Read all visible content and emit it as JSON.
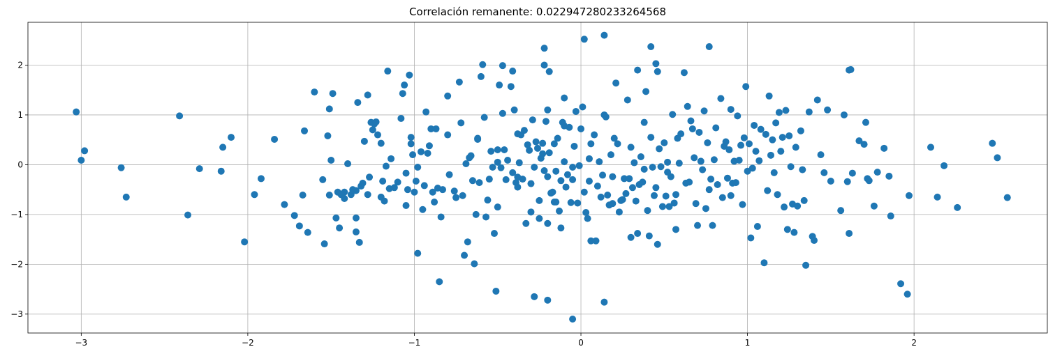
{
  "chart_data": {
    "type": "scatter",
    "title": "Correlación remanente: 0.022947280233264568",
    "xlabel": "",
    "ylabel": "",
    "xlim": [
      -3.32,
      2.8
    ],
    "ylim": [
      -3.38,
      2.86
    ],
    "grid": true,
    "marker_color": "#1f77b4",
    "xticks": [
      {
        "value": -3,
        "label": "−3"
      },
      {
        "value": -2,
        "label": "−2"
      },
      {
        "value": -1,
        "label": "−1"
      },
      {
        "value": 0,
        "label": "0"
      },
      {
        "value": 1,
        "label": "1"
      },
      {
        "value": 2,
        "label": "2"
      }
    ],
    "yticks": [
      {
        "value": -3,
        "label": "−3"
      },
      {
        "value": -2,
        "label": "−2"
      },
      {
        "value": -1,
        "label": "−1"
      },
      {
        "value": 0,
        "label": "0"
      },
      {
        "value": 1,
        "label": "1"
      },
      {
        "value": 2,
        "label": "2"
      }
    ],
    "points": [
      [
        -3.03,
        1.06
      ],
      [
        -3.0,
        0.09
      ],
      [
        -2.98,
        0.28
      ],
      [
        -2.76,
        -0.06
      ],
      [
        -2.73,
        -0.65
      ],
      [
        -2.41,
        0.98
      ],
      [
        -2.36,
        -1.01
      ],
      [
        -2.29,
        -0.08
      ],
      [
        -2.16,
        -0.13
      ],
      [
        -2.15,
        0.35
      ],
      [
        -2.1,
        0.55
      ],
      [
        -2.02,
        -1.55
      ],
      [
        -1.96,
        -0.6
      ],
      [
        -1.92,
        -0.28
      ],
      [
        -1.84,
        0.51
      ],
      [
        -1.78,
        -0.8
      ],
      [
        -1.72,
        -1.02
      ],
      [
        -1.69,
        -1.23
      ],
      [
        -1.67,
        -0.61
      ],
      [
        -1.66,
        0.68
      ],
      [
        -1.64,
        -1.36
      ],
      [
        -1.6,
        1.46
      ],
      [
        -1.55,
        -0.3
      ],
      [
        -1.54,
        -1.59
      ],
      [
        -1.52,
        0.58
      ],
      [
        -1.51,
        1.12
      ],
      [
        -1.51,
        -0.61
      ],
      [
        -1.5,
        0.09
      ],
      [
        -1.49,
        1.43
      ],
      [
        -1.47,
        -1.07
      ],
      [
        -1.46,
        -0.55
      ],
      [
        -1.45,
        -1.27
      ],
      [
        -1.44,
        -0.6
      ],
      [
        -1.42,
        -0.55
      ],
      [
        -1.42,
        -0.68
      ],
      [
        -1.4,
        0.02
      ],
      [
        -1.38,
        -0.6
      ],
      [
        -1.37,
        -0.5
      ],
      [
        -1.35,
        -1.07
      ],
      [
        -1.35,
        -1.35
      ],
      [
        -1.34,
        1.25
      ],
      [
        -1.33,
        -1.56
      ],
      [
        -1.32,
        -0.43
      ],
      [
        -1.31,
        -0.37
      ],
      [
        -1.3,
        0.47
      ],
      [
        -1.28,
        1.4
      ],
      [
        -1.28,
        -0.6
      ],
      [
        -1.27,
        -0.25
      ],
      [
        -1.26,
        0.85
      ],
      [
        -1.25,
        0.7
      ],
      [
        -1.24,
        0.82
      ],
      [
        -1.23,
        0.86
      ],
      [
        -1.22,
        0.6
      ],
      [
        -1.2,
        0.43
      ],
      [
        -1.2,
        -0.65
      ],
      [
        -1.19,
        -0.33
      ],
      [
        -1.18,
        -0.73
      ],
      [
        -1.17,
        -0.03
      ],
      [
        -1.16,
        1.88
      ],
      [
        -1.15,
        -0.48
      ],
      [
        -1.14,
        0.12
      ],
      [
        -1.12,
        -0.46
      ],
      [
        -1.1,
        -0.35
      ],
      [
        -1.08,
        0.93
      ],
      [
        -1.07,
        1.43
      ],
      [
        -1.06,
        1.6
      ],
      [
        -1.05,
        -0.17
      ],
      [
        -1.05,
        -0.82
      ],
      [
        -1.04,
        -0.5
      ],
      [
        -1.03,
        1.8
      ],
      [
        -1.02,
        0.55
      ],
      [
        -1.02,
        0.42
      ],
      [
        -1.01,
        0.2
      ],
      [
        -1.0,
        -0.55
      ],
      [
        -0.99,
        -0.33
      ],
      [
        -0.98,
        -0.05
      ],
      [
        -0.98,
        -1.78
      ],
      [
        -0.96,
        0.26
      ],
      [
        -0.95,
        -0.9
      ],
      [
        -0.94,
        -0.42
      ],
      [
        -0.93,
        1.06
      ],
      [
        -0.92,
        0.23
      ],
      [
        -0.91,
        0.38
      ],
      [
        -0.9,
        0.72
      ],
      [
        -0.89,
        -0.55
      ],
      [
        -0.88,
        -0.75
      ],
      [
        -0.87,
        0.72
      ],
      [
        -0.86,
        -0.47
      ],
      [
        -0.85,
        -2.35
      ],
      [
        -0.84,
        -1.05
      ],
      [
        -0.83,
        -0.5
      ],
      [
        -0.8,
        0.6
      ],
      [
        -0.79,
        -0.2
      ],
      [
        -0.76,
        -0.53
      ],
      [
        -0.75,
        -0.66
      ],
      [
        -0.73,
        1.66
      ],
      [
        -0.72,
        0.84
      ],
      [
        -0.71,
        -0.62
      ],
      [
        -0.7,
        -1.82
      ],
      [
        -0.69,
        0.02
      ],
      [
        -0.68,
        -1.55
      ],
      [
        -0.67,
        0.14
      ],
      [
        -0.66,
        0.18
      ],
      [
        -0.65,
        -0.32
      ],
      [
        -0.64,
        -1.99
      ],
      [
        -0.63,
        -1.0
      ],
      [
        -0.62,
        0.51
      ],
      [
        -0.62,
        0.53
      ],
      [
        -0.61,
        -0.36
      ],
      [
        -0.6,
        1.77
      ],
      [
        -0.59,
        2.01
      ],
      [
        -0.58,
        0.95
      ],
      [
        -0.57,
        -1.05
      ],
      [
        -0.56,
        -0.71
      ],
      [
        -0.55,
        -0.29
      ],
      [
        -0.54,
        0.27
      ],
      [
        -0.53,
        -0.05
      ],
      [
        -0.52,
        -1.38
      ],
      [
        -0.51,
        -2.54
      ],
      [
        -0.5,
        0.3
      ],
      [
        -0.5,
        0.05
      ],
      [
        -0.49,
        1.6
      ],
      [
        -0.48,
        -0.06
      ],
      [
        -0.47,
        1.03
      ],
      [
        -0.46,
        0.3
      ],
      [
        -0.45,
        -0.3
      ],
      [
        -0.44,
        0.09
      ],
      [
        -0.42,
        1.57
      ],
      [
        -0.41,
        -0.16
      ],
      [
        -0.4,
        1.1
      ],
      [
        -0.39,
        -0.36
      ],
      [
        -0.38,
        0.62
      ],
      [
        -0.38,
        -0.45
      ],
      [
        -0.37,
        0.04
      ],
      [
        -0.36,
        0.6
      ],
      [
        -0.35,
        -0.29
      ],
      [
        -0.34,
        0.69
      ],
      [
        -0.33,
        -1.18
      ],
      [
        -0.32,
        0.4
      ],
      [
        -0.31,
        0.29
      ],
      [
        -0.3,
        -0.38
      ],
      [
        -0.3,
        -0.95
      ],
      [
        -0.29,
        0.9
      ],
      [
        -0.28,
        -0.05
      ],
      [
        -0.27,
        0.46
      ],
      [
        -0.26,
        0.33
      ],
      [
        -0.25,
        -0.72
      ],
      [
        -0.25,
        -1.08
      ],
      [
        -0.24,
        0.13
      ],
      [
        -0.23,
        0.43
      ],
      [
        -0.23,
        0.22
      ],
      [
        -0.22,
        2.0
      ],
      [
        -0.22,
        -0.12
      ],
      [
        -0.21,
        0.87
      ],
      [
        -0.2,
        -0.24
      ],
      [
        -0.2,
        -1.18
      ],
      [
        -0.19,
        1.87
      ],
      [
        -0.19,
        0.24
      ],
      [
        -0.18,
        -0.57
      ],
      [
        -0.17,
        -0.55
      ],
      [
        -0.16,
        -0.75
      ],
      [
        -0.16,
        0.42
      ],
      [
        -0.15,
        -0.13
      ],
      [
        -0.15,
        -0.75
      ],
      [
        -0.14,
        0.53
      ],
      [
        -0.13,
        -0.93
      ],
      [
        -0.12,
        -1.27
      ],
      [
        -0.12,
        -0.32
      ],
      [
        -0.11,
        0.85
      ],
      [
        -0.1,
        0.06
      ],
      [
        -0.1,
        1.34
      ],
      [
        -0.09,
        -0.45
      ],
      [
        -0.08,
        -0.2
      ],
      [
        -0.07,
        0.75
      ],
      [
        -0.06,
        -0.76
      ],
      [
        -0.05,
        -0.3
      ],
      [
        -0.05,
        -0.05
      ],
      [
        -0.04,
        0.37
      ],
      [
        -0.03,
        1.07
      ],
      [
        -0.02,
        -0.77
      ],
      [
        -0.01,
        -0.02
      ],
      [
        0.0,
        0.72
      ],
      [
        0.01,
        1.16
      ],
      [
        0.02,
        -0.55
      ],
      [
        0.03,
        -0.96
      ],
      [
        0.04,
        -1.08
      ],
      [
        0.05,
        -0.33
      ],
      [
        0.06,
        0.42
      ],
      [
        0.06,
        -1.53
      ],
      [
        0.08,
        0.6
      ],
      [
        0.09,
        -1.53
      ],
      [
        0.1,
        -0.43
      ],
      [
        0.11,
        0.06
      ],
      [
        0.12,
        -0.65
      ],
      [
        0.13,
        -0.21
      ],
      [
        0.14,
        1.0
      ],
      [
        0.15,
        0.96
      ],
      [
        0.16,
        -0.61
      ],
      [
        0.17,
        -0.81
      ],
      [
        0.18,
        0.2
      ],
      [
        0.19,
        -0.78
      ],
      [
        0.19,
        -0.24
      ],
      [
        0.21,
        1.64
      ],
      [
        0.22,
        0.42
      ],
      [
        0.23,
        -0.95
      ],
      [
        0.24,
        -0.72
      ],
      [
        0.25,
        -0.7
      ],
      [
        0.26,
        -0.28
      ],
      [
        0.27,
        -0.58
      ],
      [
        0.28,
        1.3
      ],
      [
        0.29,
        -0.28
      ],
      [
        0.3,
        -1.46
      ],
      [
        0.31,
        -0.46
      ],
      [
        0.32,
        0.04
      ],
      [
        0.33,
        -0.73
      ],
      [
        0.34,
        -1.38
      ],
      [
        0.35,
        -0.4
      ],
      [
        0.36,
        0.16
      ],
      [
        0.37,
        -0.35
      ],
      [
        0.38,
        -0.09
      ],
      [
        0.39,
        1.47
      ],
      [
        0.4,
        -0.92
      ],
      [
        0.41,
        -1.43
      ],
      [
        0.42,
        0.55
      ],
      [
        0.43,
        -0.05
      ],
      [
        0.44,
        -0.62
      ],
      [
        0.45,
        -0.46
      ],
      [
        0.46,
        -1.6
      ],
      [
        0.47,
        0.32
      ],
      [
        0.48,
        -0.04
      ],
      [
        0.49,
        -0.84
      ],
      [
        0.5,
        0.44
      ],
      [
        0.51,
        -0.63
      ],
      [
        0.52,
        0.05
      ],
      [
        0.53,
        -0.84
      ],
      [
        0.54,
        -0.24
      ],
      [
        0.55,
        1.01
      ],
      [
        0.56,
        -0.77
      ],
      [
        0.57,
        -1.3
      ],
      [
        0.58,
        0.53
      ],
      [
        0.59,
        0.03
      ],
      [
        0.6,
        0.62
      ],
      [
        0.62,
        1.85
      ],
      [
        0.63,
        -0.37
      ],
      [
        0.64,
        1.17
      ],
      [
        0.65,
        -0.35
      ],
      [
        0.66,
        0.88
      ],
      [
        0.67,
        0.72
      ],
      [
        0.68,
        0.14
      ],
      [
        0.69,
        -0.78
      ],
      [
        0.7,
        -1.22
      ],
      [
        0.71,
        0.65
      ],
      [
        0.72,
        0.07
      ],
      [
        0.73,
        -0.1
      ],
      [
        0.74,
        1.08
      ],
      [
        0.75,
        -0.88
      ],
      [
        0.76,
        0.44
      ],
      [
        0.77,
        -0.5
      ],
      [
        0.78,
        -0.29
      ],
      [
        0.79,
        -1.22
      ],
      [
        0.8,
        0.1
      ],
      [
        0.81,
        0.74
      ],
      [
        0.82,
        -0.4
      ],
      [
        0.84,
        1.33
      ],
      [
        0.85,
        -0.66
      ],
      [
        0.86,
        0.37
      ],
      [
        0.87,
        0.46
      ],
      [
        0.88,
        -0.27
      ],
      [
        0.89,
        0.3
      ],
      [
        0.9,
        1.11
      ],
      [
        0.91,
        -0.37
      ],
      [
        0.92,
        0.07
      ],
      [
        0.93,
        -0.36
      ],
      [
        0.94,
        0.98
      ],
      [
        0.95,
        0.09
      ],
      [
        0.96,
        0.39
      ],
      [
        0.97,
        -0.8
      ],
      [
        0.98,
        0.54
      ],
      [
        0.99,
        1.57
      ],
      [
        1.0,
        -0.13
      ],
      [
        1.01,
        0.42
      ],
      [
        1.02,
        -1.47
      ],
      [
        1.03,
        -0.07
      ],
      [
        1.04,
        0.79
      ],
      [
        1.05,
        0.27
      ],
      [
        1.06,
        -1.24
      ],
      [
        1.07,
        0.08
      ],
      [
        1.08,
        0.71
      ],
      [
        1.1,
        -1.97
      ],
      [
        1.11,
        0.61
      ],
      [
        1.12,
        -0.52
      ],
      [
        1.13,
        1.38
      ],
      [
        1.14,
        0.19
      ],
      [
        1.15,
        0.5
      ],
      [
        1.16,
        -0.16
      ],
      [
        1.17,
        0.84
      ],
      [
        1.18,
        -0.6
      ],
      [
        1.19,
        1.05
      ],
      [
        1.2,
        0.27
      ],
      [
        1.21,
        0.55
      ],
      [
        1.22,
        -0.85
      ],
      [
        1.23,
        1.09
      ],
      [
        1.24,
        -1.3
      ],
      [
        1.25,
        0.58
      ],
      [
        1.26,
        -0.04
      ],
      [
        1.27,
        -0.79
      ],
      [
        1.28,
        -1.36
      ],
      [
        1.29,
        0.35
      ],
      [
        1.3,
        -0.83
      ],
      [
        1.32,
        0.68
      ],
      [
        1.33,
        -0.1
      ],
      [
        1.34,
        -0.72
      ],
      [
        1.35,
        -2.02
      ],
      [
        1.37,
        1.06
      ],
      [
        1.39,
        -1.44
      ],
      [
        1.4,
        -1.52
      ],
      [
        1.42,
        1.3
      ],
      [
        1.44,
        0.2
      ],
      [
        1.46,
        -0.16
      ],
      [
        1.48,
        1.1
      ],
      [
        1.5,
        -0.33
      ],
      [
        1.56,
        -0.92
      ],
      [
        1.58,
        1.0
      ],
      [
        1.6,
        -0.34
      ],
      [
        1.61,
        -1.38
      ],
      [
        1.63,
        -0.17
      ],
      [
        1.62,
        1.91
      ],
      [
        1.67,
        0.48
      ],
      [
        1.7,
        0.41
      ],
      [
        1.71,
        0.85
      ],
      [
        1.72,
        -0.28
      ],
      [
        1.73,
        -0.32
      ],
      [
        1.76,
        -0.83
      ],
      [
        1.78,
        -0.15
      ],
      [
        1.82,
        0.33
      ],
      [
        1.85,
        -0.23
      ],
      [
        1.86,
        -1.03
      ],
      [
        1.92,
        -2.39
      ],
      [
        1.96,
        -2.6
      ],
      [
        1.97,
        -0.62
      ],
      [
        2.1,
        0.35
      ],
      [
        2.14,
        -0.65
      ],
      [
        2.18,
        -0.02
      ],
      [
        2.26,
        -0.86
      ],
      [
        2.47,
        0.43
      ],
      [
        2.5,
        0.14
      ],
      [
        2.56,
        -0.66
      ],
      [
        -0.8,
        1.38
      ],
      [
        -0.5,
        -0.85
      ],
      [
        0.05,
        0.12
      ],
      [
        0.52,
        -0.15
      ],
      [
        -0.2,
        1.1
      ],
      [
        0.38,
        0.85
      ],
      [
        -1.35,
        -0.52
      ],
      [
        0.3,
        0.35
      ],
      [
        -0.05,
        -3.1
      ],
      [
        0.14,
        -2.76
      ],
      [
        -0.2,
        -2.72
      ],
      [
        -0.28,
        -2.65
      ],
      [
        0.14,
        2.6
      ],
      [
        0.02,
        2.52
      ],
      [
        -0.22,
        2.34
      ],
      [
        0.42,
        2.37
      ],
      [
        0.77,
        2.37
      ],
      [
        -0.47,
        1.99
      ],
      [
        1.61,
        1.9
      ],
      [
        0.45,
        2.03
      ],
      [
        0.46,
        1.87
      ],
      [
        0.34,
        1.9
      ],
      [
        -0.41,
        1.88
      ],
      [
        -0.38,
        -0.25
      ],
      [
        0.57,
        -0.6
      ],
      [
        -0.1,
        0.78
      ],
      [
        0.2,
        0.53
      ],
      [
        0.9,
        -0.62
      ]
    ]
  }
}
